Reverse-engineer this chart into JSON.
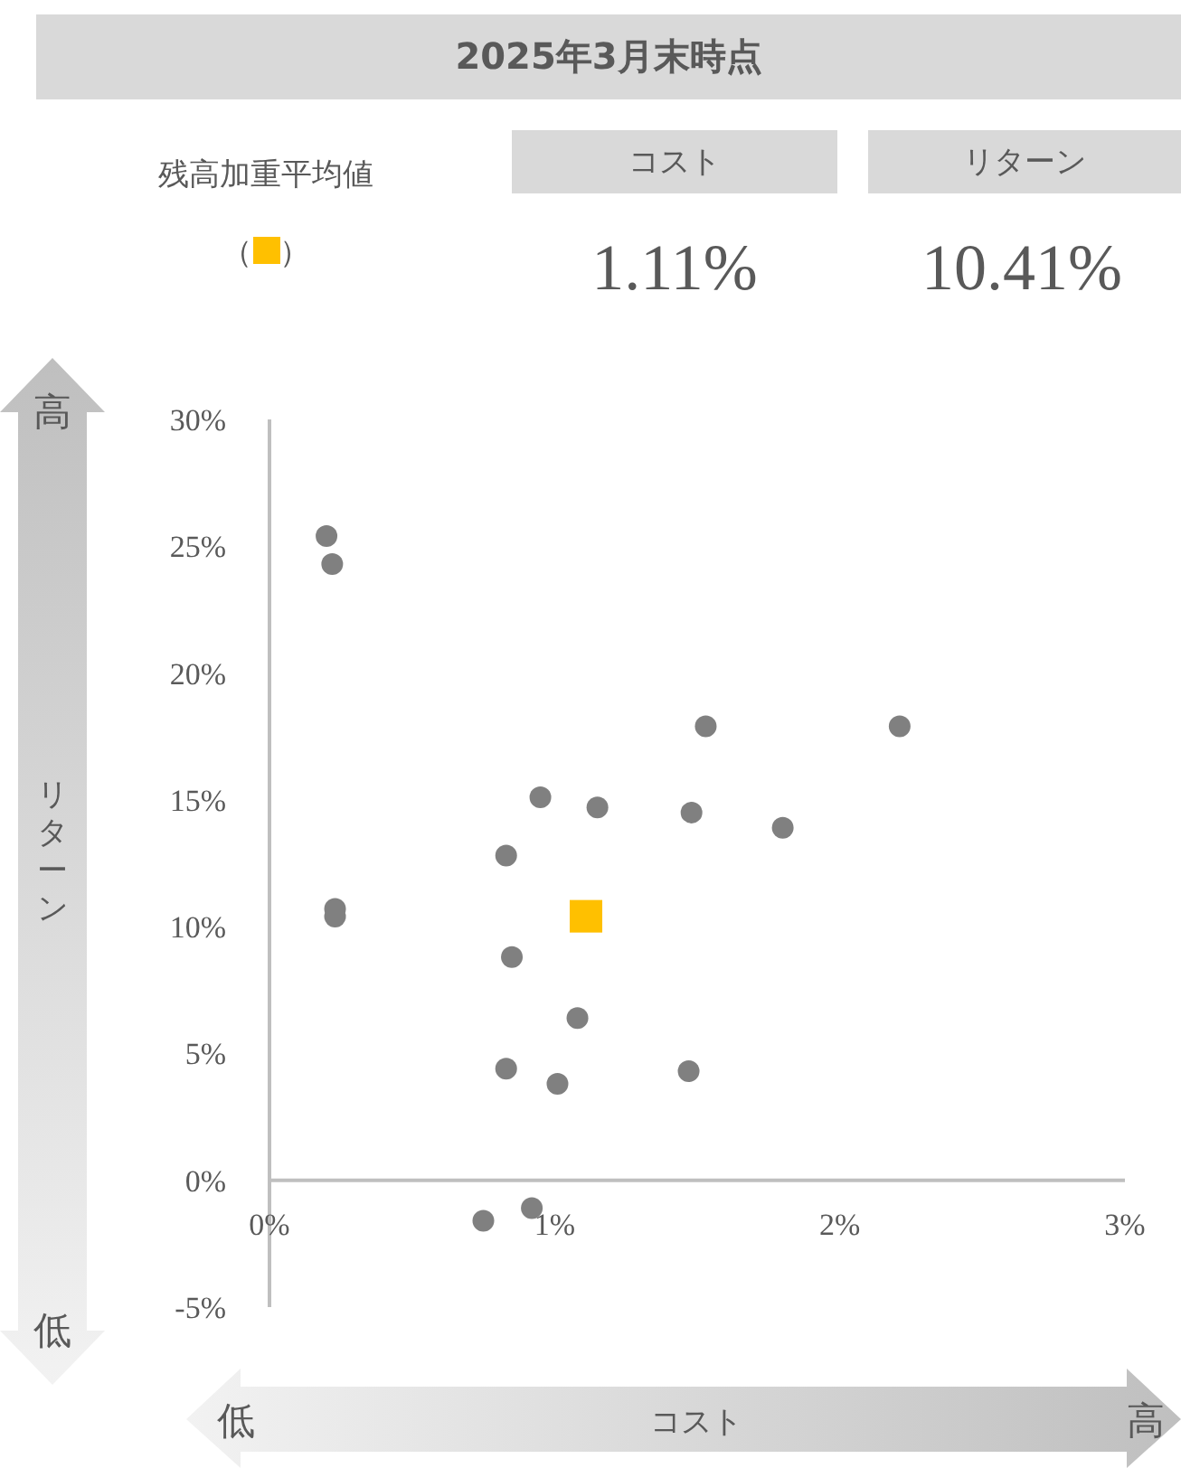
{
  "chart_data": {
    "type": "scatter",
    "title": "2025年3月末時点",
    "xlabel": "コスト",
    "ylabel": "リターン",
    "xlim": [
      0,
      3
    ],
    "xticks": [
      {
        "value": 0,
        "label": "0%"
      },
      {
        "value": 1,
        "label": "1%"
      },
      {
        "value": 2,
        "label": "2%"
      },
      {
        "value": 3,
        "label": "3%"
      }
    ],
    "ylim": [
      -5,
      30
    ],
    "yticks": [
      {
        "value": -5,
        "label": "-5%"
      },
      {
        "value": 0,
        "label": "0%"
      },
      {
        "value": 5,
        "label": "5%"
      },
      {
        "value": 10,
        "label": "10%"
      },
      {
        "value": 15,
        "label": "15%"
      },
      {
        "value": 20,
        "label": "20%"
      },
      {
        "value": 25,
        "label": "25%"
      },
      {
        "value": 30,
        "label": "30%"
      }
    ],
    "legend": "top left",
    "series": [
      {
        "color": "#808080",
        "marker": "circle",
        "x": [
          0.2,
          0.22,
          0.23,
          0.23,
          0.95,
          1.15,
          1.48,
          1.8,
          1.53,
          2.21,
          0.83,
          0.85,
          1.08,
          0.83,
          1.01,
          1.47,
          0.92,
          0.75
        ],
        "values": [
          25.4,
          24.3,
          10.7,
          10.4,
          15.1,
          14.7,
          14.5,
          13.9,
          17.9,
          17.9,
          12.8,
          8.8,
          6.4,
          4.4,
          3.8,
          4.3,
          -1.1,
          -1.6
        ]
      },
      {
        "name": "残高加重平均値",
        "color": "#ffc000",
        "marker": "square",
        "x": [
          1.11
        ],
        "values": [
          10.41
        ]
      }
    ],
    "annotations": [
      "コスト",
      "1.11%",
      "リターン",
      "10.41%",
      "高",
      "低",
      "低",
      "高",
      "（",
      "）"
    ]
  }
}
